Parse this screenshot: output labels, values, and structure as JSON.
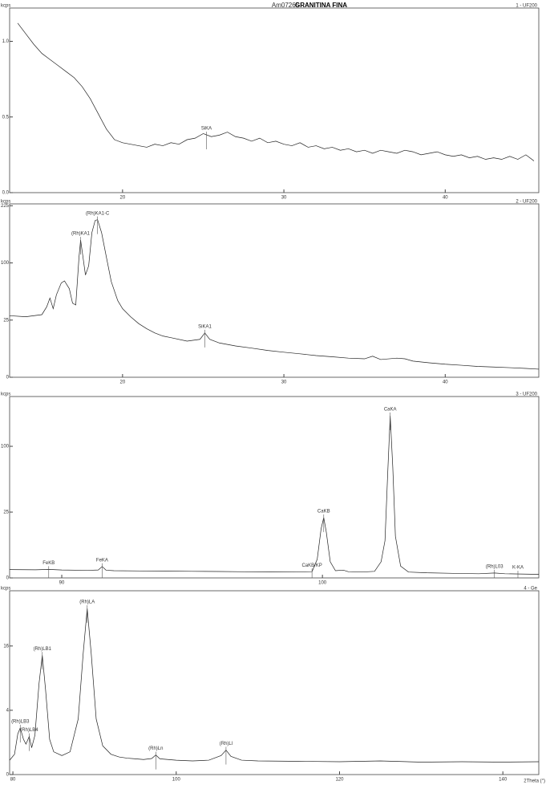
{
  "header": {
    "sample": "Am07265",
    "title": "GRANITINA FINA"
  },
  "chart_data": [
    {
      "type": "line",
      "title": "1 - UF200",
      "ylabel": "kcps",
      "yscale": "linear",
      "color": "#222222",
      "xlim": [
        13,
        45.8
      ],
      "ylim": [
        0,
        1.22
      ],
      "xticks": [
        20,
        30,
        40
      ],
      "yticks": [
        {
          "value": 0,
          "label": "0.0"
        },
        0.5,
        {
          "value": 1,
          "label": "1.0"
        }
      ],
      "annotations": [
        {
          "label": "SiKA",
          "x": 25.2
        }
      ],
      "x": [
        13.5,
        14,
        14.5,
        15,
        15.5,
        16,
        16.5,
        17,
        17.5,
        18,
        18.5,
        19,
        19.5,
        20,
        20.5,
        21,
        21.5,
        22,
        22.5,
        23,
        23.5,
        24,
        24.5,
        25,
        25.5,
        26,
        26.5,
        27,
        27.5,
        28,
        28.5,
        29,
        29.5,
        30,
        30.5,
        31,
        31.5,
        32,
        32.5,
        33,
        33.5,
        34,
        34.5,
        35,
        35.5,
        36,
        36.5,
        37,
        37.5,
        38,
        38.5,
        39,
        39.5,
        40,
        40.5,
        41,
        41.5,
        42,
        42.5,
        43,
        43.5,
        44,
        44.5,
        45,
        45.5
      ],
      "values": [
        1.12,
        1.05,
        0.98,
        0.92,
        0.88,
        0.84,
        0.8,
        0.76,
        0.7,
        0.62,
        0.52,
        0.42,
        0.35,
        0.33,
        0.32,
        0.31,
        0.3,
        0.32,
        0.31,
        0.33,
        0.32,
        0.35,
        0.36,
        0.39,
        0.37,
        0.38,
        0.4,
        0.37,
        0.36,
        0.34,
        0.36,
        0.33,
        0.34,
        0.32,
        0.31,
        0.33,
        0.3,
        0.31,
        0.29,
        0.3,
        0.28,
        0.29,
        0.27,
        0.28,
        0.26,
        0.28,
        0.27,
        0.26,
        0.28,
        0.27,
        0.25,
        0.26,
        0.27,
        0.25,
        0.24,
        0.25,
        0.23,
        0.24,
        0.22,
        0.23,
        0.22,
        0.24,
        0.22,
        0.25,
        0.21
      ]
    },
    {
      "type": "line",
      "title": "2 - UF200",
      "ylabel": "kcps",
      "yscale": "sqrt",
      "color": "#222222",
      "xlim": [
        13,
        45.8
      ],
      "ylim": [
        0,
        230
      ],
      "xticks": [
        20,
        30,
        40
      ],
      "yticks": [
        0,
        25,
        100,
        225
      ],
      "annotations": [
        {
          "label": "(Rh)KA1",
          "x": 17.4
        },
        {
          "label": "(Rh)KA1-C",
          "x": 18.45
        },
        {
          "label": "SiKA1",
          "x": 25.1
        }
      ],
      "x": [
        13,
        14,
        15,
        15.3,
        15.5,
        15.7,
        15.9,
        16.2,
        16.4,
        16.7,
        16.9,
        17.1,
        17.3,
        17.4,
        17.55,
        17.7,
        17.9,
        18.1,
        18.3,
        18.45,
        18.7,
        19,
        19.3,
        19.7,
        20,
        20.5,
        21,
        21.5,
        22,
        22.5,
        23,
        24,
        24.8,
        25.1,
        25.4,
        26,
        27,
        28,
        29,
        30,
        31,
        32,
        33,
        34,
        35,
        35.5,
        36,
        37,
        37.5,
        38,
        39,
        40,
        41,
        42,
        43,
        44,
        45,
        45.8
      ],
      "values": [
        29,
        28,
        30,
        38,
        48,
        36,
        52,
        68,
        71,
        60,
        42,
        40,
        110,
        144,
        110,
        80,
        95,
        160,
        188,
        190,
        160,
        110,
        70,
        45,
        36,
        28,
        22,
        18,
        15,
        13,
        12,
        10,
        11,
        15,
        11,
        9,
        7.5,
        6.5,
        5.5,
        4.8,
        4.2,
        3.6,
        3.2,
        2.8,
        2.6,
        3.4,
        2.4,
        2.8,
        2.6,
        2.0,
        1.6,
        1.3,
        1.1,
        0.9,
        0.8,
        0.7,
        0.6,
        0.5
      ]
    },
    {
      "type": "line",
      "title": "3 - UF200",
      "ylabel": "kcps",
      "yscale": "sqrt",
      "color": "#222222",
      "xlim": [
        88,
        108.3
      ],
      "ylim": [
        0,
        190
      ],
      "xticks": [
        90,
        100
      ],
      "yticks": [
        0,
        25,
        100
      ],
      "annotations": [
        {
          "label": "FeKB",
          "x": 89.5
        },
        {
          "label": "FeKA",
          "x": 91.55
        },
        {
          "label": "CaKB/KP",
          "x": 99.6
        },
        {
          "label": "CaKB",
          "x": 100.05
        },
        {
          "label": "CaKA",
          "x": 102.6
        },
        {
          "label": "(Rh)L03",
          "x": 106.6
        },
        {
          "label": "K-KA",
          "x": 107.5
        }
      ],
      "x": [
        88,
        89,
        89.5,
        90,
        91,
        91.4,
        91.55,
        91.7,
        92,
        93,
        94,
        95,
        96,
        97,
        98,
        99,
        99.6,
        99.8,
        99.95,
        100.05,
        100.15,
        100.3,
        100.5,
        100.8,
        101,
        101.5,
        102,
        102.25,
        102.4,
        102.5,
        102.6,
        102.7,
        102.8,
        103,
        103.3,
        104,
        105,
        106,
        106.6,
        107,
        108,
        108.3
      ],
      "values": [
        0.4,
        0.38,
        0.42,
        0.36,
        0.33,
        0.36,
        0.75,
        0.34,
        0.3,
        0.28,
        0.27,
        0.25,
        0.24,
        0.22,
        0.21,
        0.2,
        0.22,
        2,
        14,
        21,
        12,
        1.5,
        0.3,
        0.35,
        0.22,
        0.2,
        0.25,
        1.5,
        8,
        60,
        152,
        70,
        10,
        0.8,
        0.2,
        0.15,
        0.12,
        0.1,
        0.14,
        0.1,
        0.08,
        0.07
      ]
    },
    {
      "type": "line",
      "title": "4 - Ge",
      "ylabel": "kcps",
      "xlabel": "2Theta (°)",
      "yscale": "sqrt",
      "color": "#222222",
      "xlim": [
        79.6,
        144.4
      ],
      "ylim": [
        0,
        32.7
      ],
      "xticks": [
        80,
        100,
        120,
        140
      ],
      "yticks": [
        0,
        4,
        16
      ],
      "annotations": [
        {
          "label": "(Rh)LB3",
          "x": 80.9
        },
        {
          "label": "(Rh)LB4",
          "x": 82
        },
        {
          "label": "(Rh)LB1",
          "x": 83.6
        },
        {
          "label": "(Rh)LA",
          "x": 89.1
        },
        {
          "label": "(Rh)Ln",
          "x": 97.5
        },
        {
          "label": "(Rh)Ll",
          "x": 106.1
        }
      ],
      "x": [
        79.6,
        80.2,
        80.6,
        80.9,
        81.3,
        81.6,
        82,
        82.3,
        82.7,
        83.2,
        83.6,
        84,
        84.5,
        85,
        86,
        87,
        88,
        88.6,
        89.1,
        89.6,
        90.2,
        91,
        92,
        93,
        94,
        95,
        96,
        97,
        97.5,
        98,
        100,
        102,
        104,
        105.5,
        106.1,
        106.7,
        108,
        110,
        115,
        120,
        125,
        130,
        135,
        140,
        144.4
      ],
      "values": [
        0.2,
        0.4,
        1.6,
        2.1,
        1.2,
        0.9,
        1.4,
        0.7,
        1.5,
        8,
        13.8,
        7,
        1.2,
        0.5,
        0.35,
        0.5,
        3,
        14,
        26.7,
        14,
        3,
        0.8,
        0.4,
        0.3,
        0.26,
        0.24,
        0.22,
        0.25,
        0.37,
        0.24,
        0.2,
        0.18,
        0.2,
        0.35,
        0.58,
        0.32,
        0.2,
        0.18,
        0.17,
        0.16,
        0.18,
        0.15,
        0.16,
        0.15,
        0.16
      ]
    }
  ]
}
